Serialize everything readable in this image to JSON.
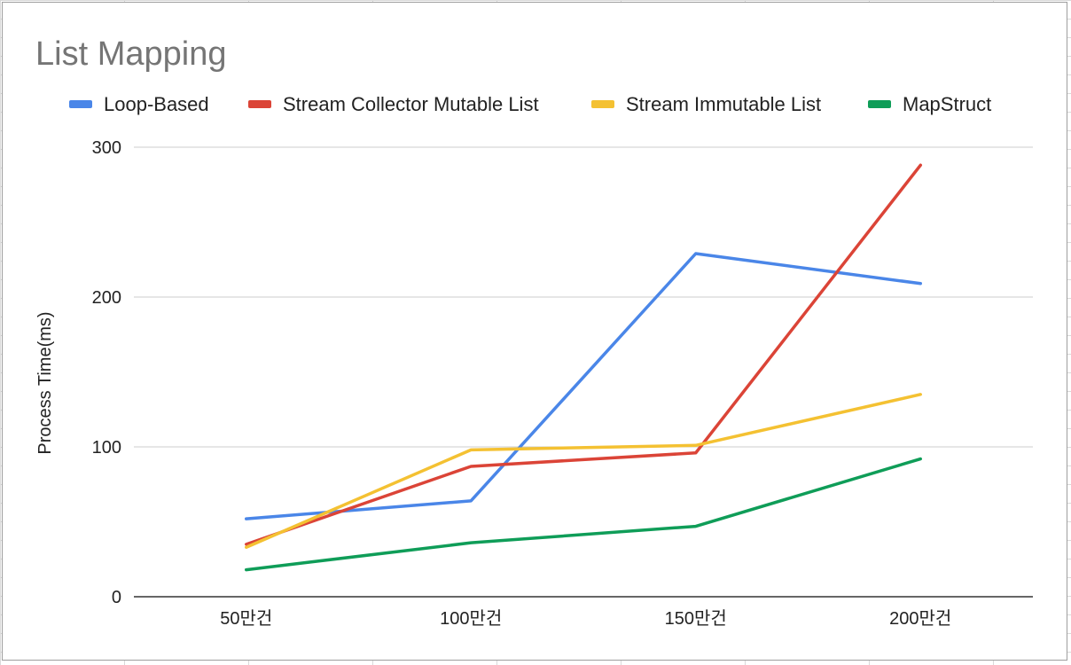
{
  "chart_data": {
    "type": "line",
    "title": "List Mapping",
    "xlabel": "",
    "ylabel": "Process Time(ms)",
    "categories": [
      "50만건",
      "100만건",
      "150만건",
      "200만건"
    ],
    "ylim": [
      0,
      300
    ],
    "yticks": [
      0,
      100,
      200,
      300
    ],
    "grid": true,
    "legend_position": "top",
    "series": [
      {
        "name": "Loop-Based",
        "color": "#4a86e8",
        "values": [
          52,
          64,
          229,
          209
        ]
      },
      {
        "name": "Stream Collector Mutable List",
        "color": "#db4437",
        "values": [
          35,
          87,
          96,
          288
        ]
      },
      {
        "name": "Stream Immutable List",
        "color": "#f4c132",
        "values": [
          33,
          98,
          101,
          135
        ]
      },
      {
        "name": "MapStruct",
        "color": "#0f9d58",
        "values": [
          18,
          36,
          47,
          92
        ]
      }
    ]
  }
}
